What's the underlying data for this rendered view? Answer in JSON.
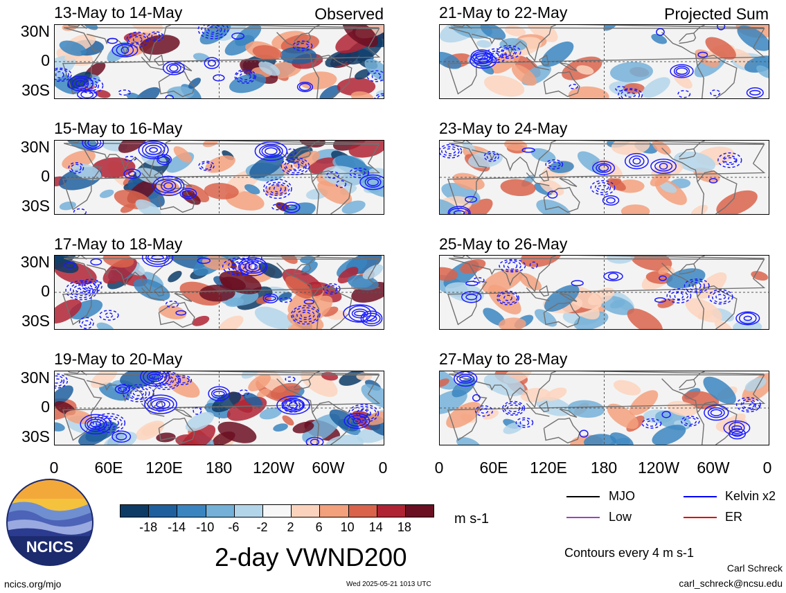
{
  "map": {
    "lat_labels": [
      "30N",
      "0",
      "30S"
    ],
    "lon_labels": [
      "0",
      "60E",
      "120E",
      "180",
      "120W",
      "60W",
      "0"
    ]
  },
  "observed": {
    "tag": "Observed",
    "panels": [
      {
        "title": "13-May to 14-May"
      },
      {
        "title": "15-May to 16-May"
      },
      {
        "title": "17-May to 18-May"
      },
      {
        "title": "19-May to 20-May"
      }
    ]
  },
  "projected": {
    "tag": "Projected Sum",
    "panels": [
      {
        "title": "21-May to 22-May"
      },
      {
        "title": "23-May to 24-May"
      },
      {
        "title": "25-May to 26-May"
      },
      {
        "title": "27-May to 28-May"
      }
    ]
  },
  "colorbar": {
    "labels": [
      "-18",
      "-14",
      "-10",
      "-6",
      "-2",
      "2",
      "6",
      "10",
      "14",
      "18"
    ],
    "unit": "m s-1",
    "colors": [
      "#0d3b66",
      "#1f5f9e",
      "#3a85c0",
      "#74b0d8",
      "#b3d5ea",
      "#f7f7f7",
      "#fbd3bd",
      "#f3a07c",
      "#d9634b",
      "#b02334",
      "#6b0f22"
    ]
  },
  "legend": {
    "items": [
      {
        "label": "MJO",
        "color": "#000000"
      },
      {
        "label": "Kelvin x2",
        "color": "#0000ff"
      },
      {
        "label": "Low",
        "color": "#a040c0"
      },
      {
        "label": "ER",
        "color": "#e00000"
      }
    ],
    "contours_note": "Contours every 4 m s-1"
  },
  "logo": {
    "text": "NCICS"
  },
  "main_title": "2-day VWND200",
  "footer": {
    "url": "ncics.org/mjo",
    "timestamp": "Wed 2025-05-21 1013 UTC",
    "author": "Carl Schreck",
    "email": "carl_schreck@ncsu.edu"
  }
}
